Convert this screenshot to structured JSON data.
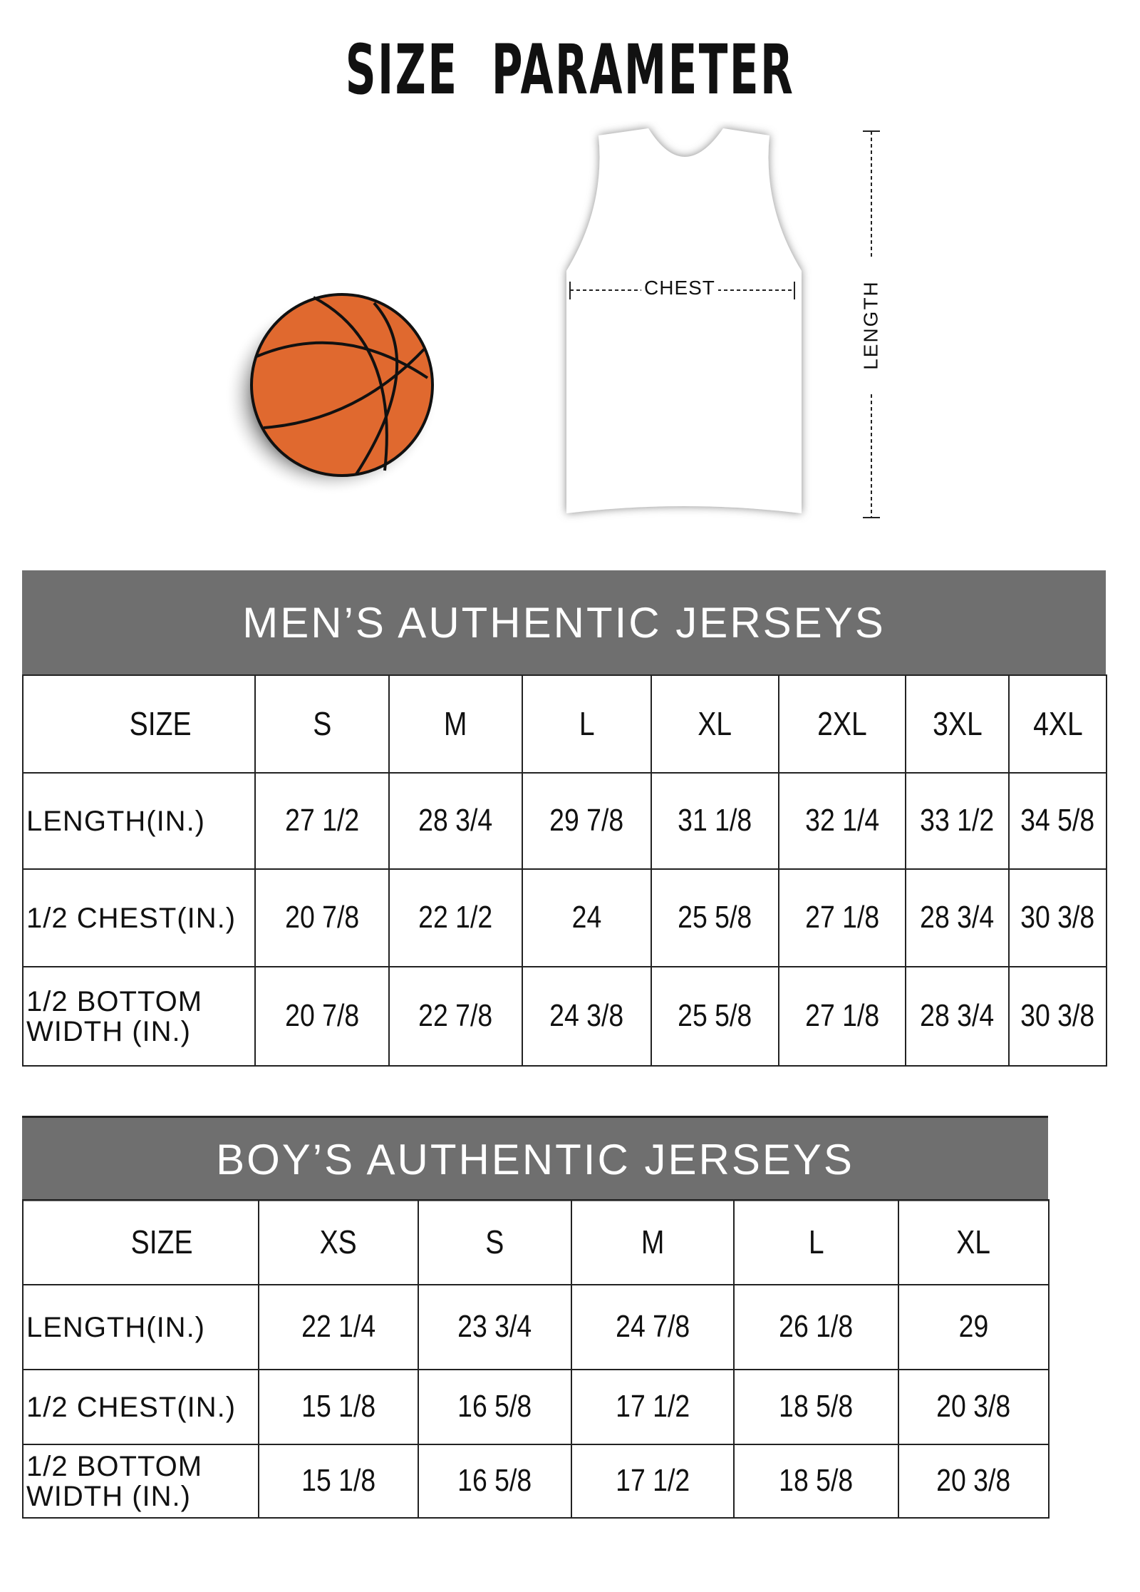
{
  "title": "SIZE  PARAMETER",
  "diagram": {
    "chest_label": "CHEST",
    "length_label": "LENGTH",
    "ball_color": "#e0692f"
  },
  "mens": {
    "heading": "MEN’S AUTHENTIC JERSEYS",
    "header_bg": "#6f6f6f",
    "columns": [
      "SIZE",
      "S",
      "M",
      "L",
      "XL",
      "2XL",
      "3XL",
      "4XL"
    ],
    "rows": [
      [
        "LENGTH(IN.)",
        "27  1/2",
        "28  3/4",
        "29  7/8",
        "31  1/8",
        "32  1/4",
        "33  1/2",
        "34  5/8"
      ],
      [
        "1/2 CHEST(IN.)",
        "20  7/8",
        "22  1/2",
        "24",
        "25  5/8",
        "27  1/8",
        "28  3/4",
        "30  3/8"
      ],
      [
        "1/2 BOTTOM\n  WIDTH  (IN.)",
        "20  7/8",
        "22  7/8",
        "24  3/8",
        "25  5/8",
        "27  1/8",
        "28  3/4",
        "30  3/8"
      ]
    ]
  },
  "boys": {
    "heading": "BOY’S AUTHENTIC JERSEYS",
    "header_bg": "#6f6f6f",
    "columns": [
      "SIZE",
      "XS",
      "S",
      "M",
      "L",
      "XL"
    ],
    "rows": [
      [
        "LENGTH(IN.)",
        "22  1/4",
        "23  3/4",
        "24  7/8",
        "26  1/8",
        "29"
      ],
      [
        "1/2 CHEST(IN.)",
        "15  1/8",
        "16  5/8",
        "17  1/2",
        "18  5/8",
        "20  3/8"
      ],
      [
        "1/2 BOTTOM\n  WIDTH  (IN.)",
        "15  1/8",
        "16  5/8",
        "17  1/2",
        "18  5/8",
        "20  3/8"
      ]
    ]
  }
}
